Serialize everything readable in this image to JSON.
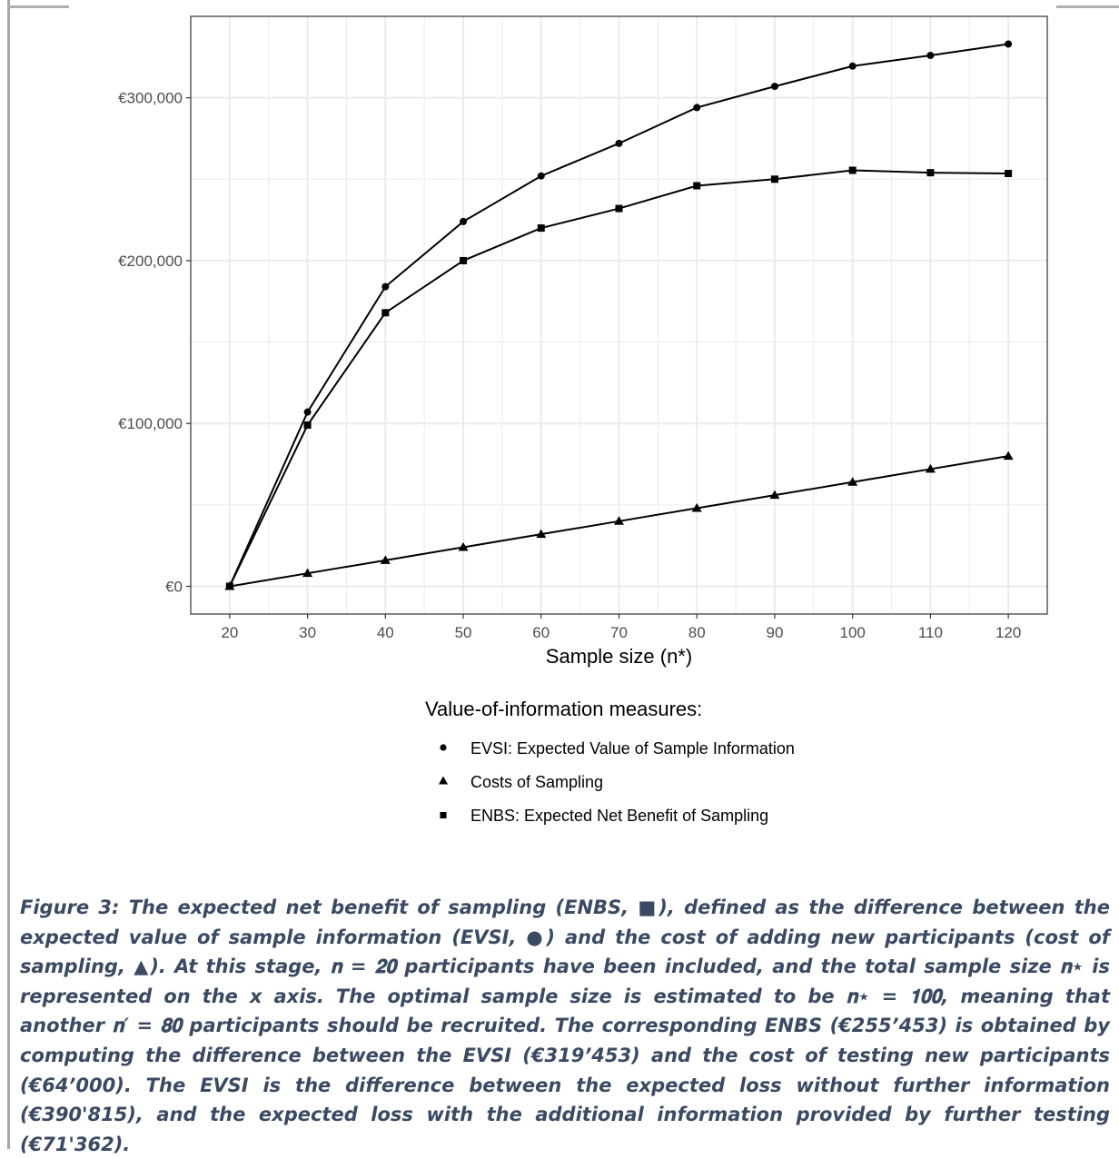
{
  "chart_data": {
    "type": "line",
    "xlabel": "Sample size (n*)",
    "ylabel": "",
    "x": [
      20,
      30,
      40,
      50,
      60,
      70,
      80,
      90,
      100,
      110,
      120
    ],
    "xlim": [
      15,
      125
    ],
    "ylim": [
      -17000,
      350000
    ],
    "y_ticks": [
      0,
      100000,
      200000,
      300000
    ],
    "y_tick_labels": [
      "€0",
      "€100,000",
      "€200,000",
      "€300,000"
    ],
    "x_tick_labels": [
      "20",
      "30",
      "40",
      "50",
      "60",
      "70",
      "80",
      "90",
      "100",
      "110",
      "120"
    ],
    "grid": true,
    "legend_position": "bottom",
    "legend_title": "Value-of-information measures:",
    "series": [
      {
        "name": "EVSI: Expected Value of Sample Information",
        "marker": "circle",
        "values": [
          0,
          107000,
          184000,
          224000,
          252000,
          272000,
          294000,
          307000,
          319453,
          326000,
          333000
        ]
      },
      {
        "name": "Costs of Sampling",
        "marker": "triangle",
        "values": [
          0,
          8000,
          16000,
          24000,
          32000,
          40000,
          48000,
          56000,
          64000,
          72000,
          80000
        ]
      },
      {
        "name": "ENBS: Expected Net Benefit of Sampling",
        "marker": "square",
        "values": [
          0,
          99000,
          168000,
          200000,
          220000,
          232000,
          246000,
          250000,
          255453,
          254000,
          253500
        ]
      }
    ],
    "colors": {
      "line": "#000000",
      "grid": "#ebebeb",
      "panel_border": "#333333"
    }
  },
  "caption": {
    "text": "Figure 3: The expected net benefit of sampling (ENBS, ■), defined as the difference between the expected value of sample information (EVSI, ●) and the cost of adding new participants (cost of sampling, ▲). At this stage, 𝐧 = 𝟐𝟎 participants have been included, and the total sample size 𝐧⋆ is represented on the x axis. The optimal sample size is estimated to be 𝐧⋆ = 𝟏𝟎𝟎, meaning that another 𝐧′ = 𝟖𝟎 participants should be recruited. The corresponding ENBS (€255’453) is obtained by computing the difference between the EVSI (€319’453) and the cost of testing new participants (€64’000). The EVSI is the difference between the expected loss without further information (€390'815), and the expected loss with the additional information provided by further testing (€71'362).",
    "color": "#3b4a63"
  }
}
